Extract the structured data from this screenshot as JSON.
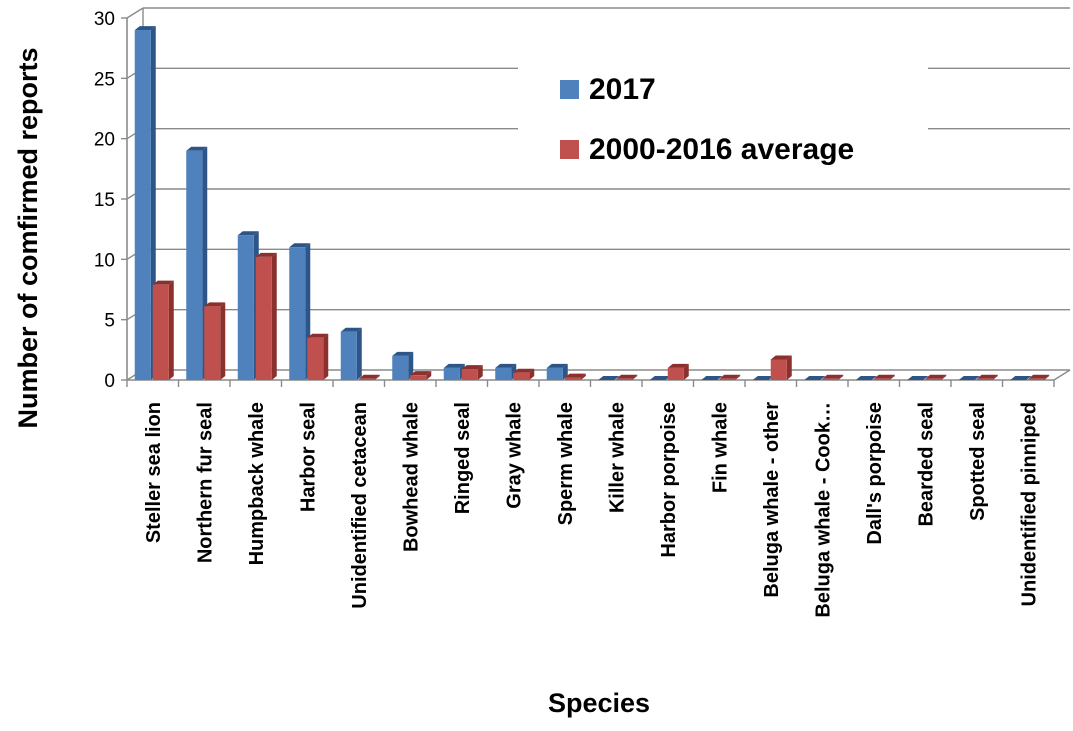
{
  "chart_data": {
    "type": "bar",
    "title": "",
    "xlabel": "Species",
    "ylabel": "Number of comfirmed reports",
    "ylim": [
      0,
      30
    ],
    "yticks": [
      0,
      5,
      10,
      15,
      20,
      25,
      30
    ],
    "grid": true,
    "legend_position": "top-right",
    "categories": [
      "Steller sea lion",
      "Northern fur seal",
      "Humpback whale",
      "Harbor seal",
      "Unidentified cetacean",
      "Bowhead whale",
      "Ringed seal",
      "Gray whale",
      "Sperm whale",
      "Killer whale",
      "Harbor porpoise",
      "Fin whale",
      "Beluga whale - other",
      "Beluga whale - Cook…",
      "Dall's porpoise",
      "Bearded seal",
      "Spotted seal",
      "Unidentified pinniped"
    ],
    "series": [
      {
        "name": "2017",
        "color": "#4F81BD",
        "dark_color": "#2D5588",
        "values": [
          29,
          19,
          12,
          11,
          4,
          2,
          1,
          1,
          1,
          0,
          0,
          0,
          0,
          0,
          0,
          0,
          0,
          0
        ]
      },
      {
        "name": "2000-2016 average",
        "color": "#C0504D",
        "dark_color": "#8C302D",
        "values": [
          7.9,
          6.1,
          10.2,
          3.5,
          0.1,
          0.4,
          0.9,
          0.6,
          0.2,
          0.1,
          1.0,
          0.1,
          1.7,
          0.1,
          0.1,
          0.1,
          0.1,
          0.1
        ]
      }
    ]
  }
}
